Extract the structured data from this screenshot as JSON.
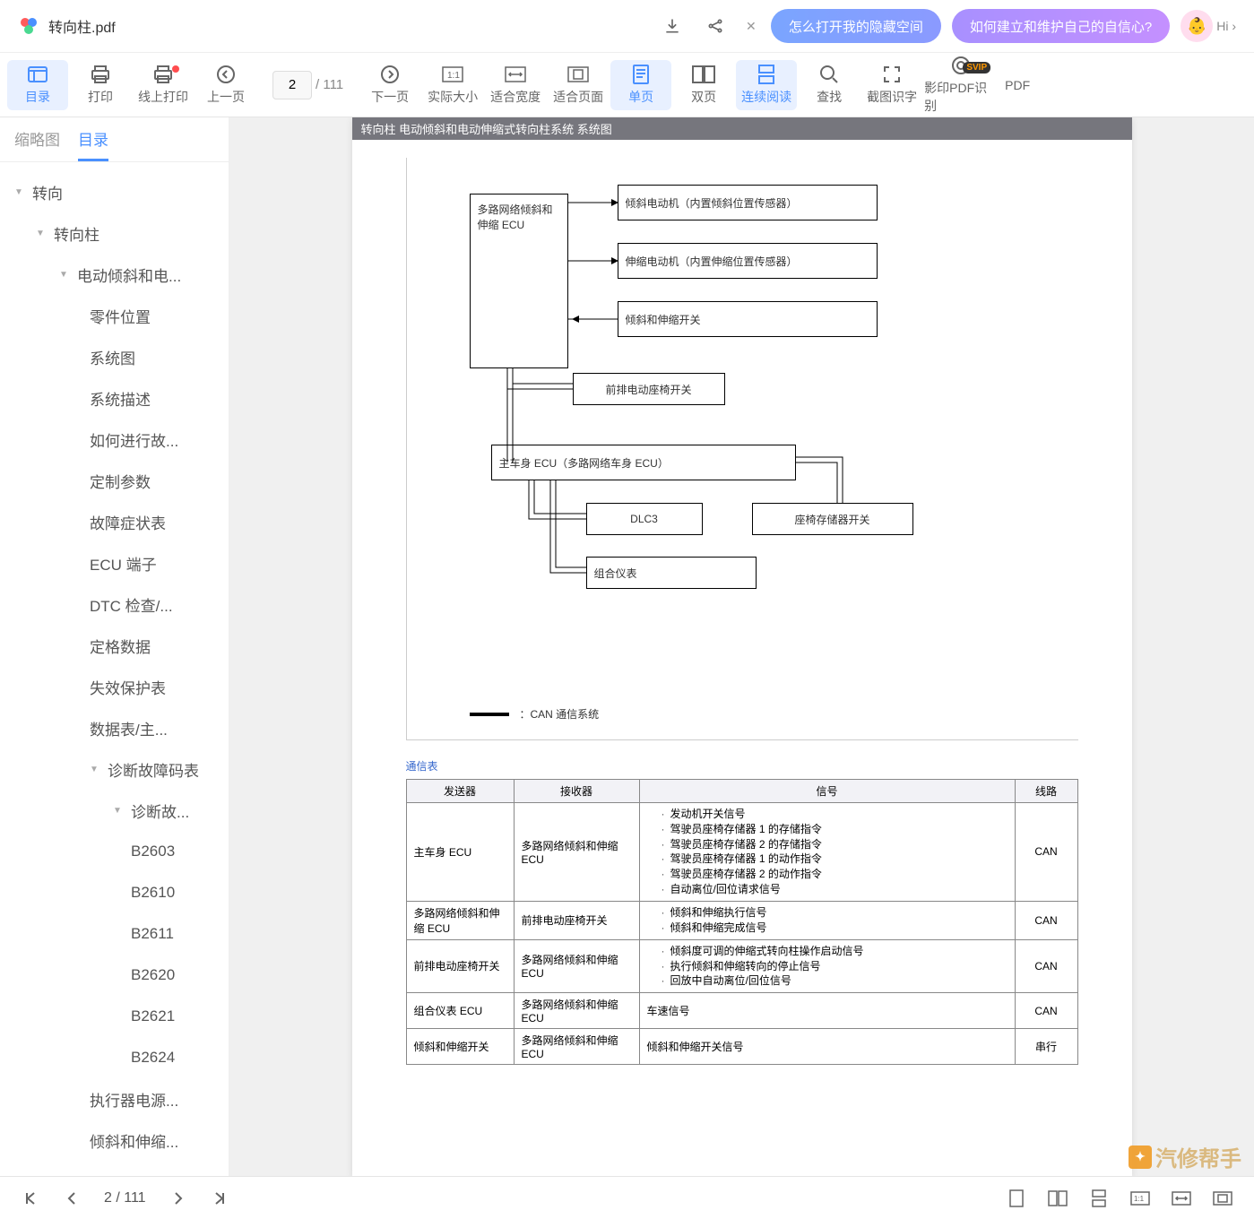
{
  "title": {
    "filename": "转向柱.pdf"
  },
  "promo": {
    "btn1": "怎么打开我的隐藏空间",
    "btn2": "如何建立和维护自己的自信心?",
    "hi": "Hi ›"
  },
  "toolbar": {
    "outline": "目录",
    "print": "打印",
    "online_print": "线上打印",
    "prev": "上一页",
    "next": "下一页",
    "actual": "实际大小",
    "fit_width": "适合宽度",
    "fit_page": "适合页面",
    "single": "单页",
    "double": "双页",
    "continuous": "连续阅读",
    "find": "查找",
    "ocr": "截图识字",
    "shadow_ocr": "影印PDF识别",
    "pdf_extra": "PDF",
    "page_current": "2",
    "page_total": "/ 111"
  },
  "tabs": {
    "thumbs": "缩略图",
    "outline": "目录"
  },
  "tree": [
    {
      "label": "转向",
      "i": 0,
      "c": true
    },
    {
      "label": "转向柱",
      "i": 1,
      "c": true
    },
    {
      "label": "电动倾斜和电...",
      "i": 2,
      "c": true
    },
    {
      "label": "零件位置",
      "i": 3
    },
    {
      "label": "系统图",
      "i": 3
    },
    {
      "label": "系统描述",
      "i": 3
    },
    {
      "label": "如何进行故...",
      "i": 3
    },
    {
      "label": "定制参数",
      "i": 3
    },
    {
      "label": "故障症状表",
      "i": 3
    },
    {
      "label": "ECU 端子",
      "i": 3
    },
    {
      "label": "DTC 检查/...",
      "i": 3
    },
    {
      "label": "定格数据",
      "i": 3
    },
    {
      "label": "失效保护表",
      "i": 3
    },
    {
      "label": "数据表/主...",
      "i": 3
    },
    {
      "label": "诊断故障码表",
      "i": 3,
      "c": true
    },
    {
      "label": "诊断故...",
      "i": 4,
      "c": true
    },
    {
      "label": "B2603",
      "i": 5
    },
    {
      "label": "B2610",
      "i": 5
    },
    {
      "label": "B2611",
      "i": 5
    },
    {
      "label": "B2620",
      "i": 5
    },
    {
      "label": "B2621",
      "i": 5
    },
    {
      "label": "B2624",
      "i": 5
    },
    {
      "label": "执行器电源...",
      "i": 3
    },
    {
      "label": "倾斜和伸缩...",
      "i": 3
    }
  ],
  "doc_header": "转向柱  电动倾斜和电动伸缩式转向柱系统  系统图",
  "diagram": {
    "box_ecu": "多路网络倾斜和伸缩 ECU",
    "box_tilt_motor": "倾斜电动机（内置倾斜位置传感器）",
    "box_tele_motor": "伸缩电动机（内置伸缩位置传感器）",
    "box_switch": "倾斜和伸缩开关",
    "box_seat_sw": "前排电动座椅开关",
    "box_main_ecu": "主车身 ECU（多路网络车身 ECU）",
    "box_dlc3": "DLC3",
    "box_seat_mem": "座椅存储器开关",
    "box_combo": "组合仪表",
    "can_legend": "：CAN 通信系统"
  },
  "comm_title": "通信表",
  "comm_table": {
    "cols": [
      "发送器",
      "接收器",
      "信号",
      "线路"
    ],
    "rows": [
      {
        "tx": "主车身 ECU",
        "rx": "多路网络倾斜和伸缩 ECU",
        "sig": [
          "发动机开关信号",
          "驾驶员座椅存储器 1 的存储指令",
          "驾驶员座椅存储器 2 的存储指令",
          "驾驶员座椅存储器 1 的动作指令",
          "驾驶员座椅存储器 2 的动作指令",
          "自动离位/回位请求信号"
        ],
        "line": "CAN"
      },
      {
        "tx": "多路网络倾斜和伸缩 ECU",
        "rx": "前排电动座椅开关",
        "sig": [
          "倾斜和伸缩执行信号",
          "倾斜和伸缩完成信号"
        ],
        "line": "CAN"
      },
      {
        "tx": "前排电动座椅开关",
        "rx": "多路网络倾斜和伸缩 ECU",
        "sig": [
          "倾斜度可调的伸缩式转向柱操作启动信号",
          "执行倾斜和伸缩转向的停止信号",
          "回放中自动离位/回位信号"
        ],
        "line": "CAN"
      },
      {
        "tx": "组合仪表 ECU",
        "rx": "多路网络倾斜和伸缩 ECU",
        "sig": [
          "车速信号"
        ],
        "line": "CAN"
      },
      {
        "tx": "倾斜和伸缩开关",
        "rx": "多路网络倾斜和伸缩 ECU",
        "sig": [
          "倾斜和伸缩开关信号"
        ],
        "line": "串行"
      }
    ]
  },
  "footer": {
    "page_current": "2",
    "page_total": "/ 111"
  },
  "watermark": "汽修帮手"
}
